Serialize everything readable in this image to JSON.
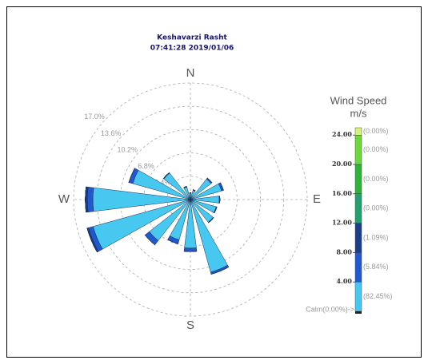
{
  "chart_data": {
    "type": "windrose",
    "title": "Keshavarzi Rasht",
    "subtitle": "07:41:28 2019/01/06",
    "categories": [
      "N",
      null,
      null,
      null,
      "E",
      null,
      null,
      null,
      "S",
      null,
      null,
      null,
      "W",
      null,
      null,
      null
    ],
    "rlim": [
      0,
      17
    ],
    "rticks": [
      {
        "value": 3.4,
        "label": "3.4%"
      },
      {
        "value": 6.8,
        "label": "6.8%"
      },
      {
        "value": 10.2,
        "label": "10.2%"
      },
      {
        "value": 13.6,
        "label": "13.6%"
      },
      {
        "value": 17.0,
        "label": "17.0%"
      }
    ],
    "grid": true,
    "legend_title": "Wind Speed",
    "legend_unit": "m/s",
    "calm_label": "Calm(0.00%)->",
    "speed_lim": [
      0,
      25
    ],
    "speed_bins": [
      0,
      4,
      8,
      12,
      16,
      20,
      24
    ],
    "speed_ticks": [
      {
        "value": 4,
        "label": "4.00"
      },
      {
        "value": 8,
        "label": "8.00"
      },
      {
        "value": 12,
        "label": "12.00"
      },
      {
        "value": 16,
        "label": "16.00"
      },
      {
        "value": 20,
        "label": "20.00"
      },
      {
        "value": 24,
        "label": "24.00"
      }
    ],
    "series": [
      {
        "color": "#46c8f0",
        "share_label": "(82.45%)",
        "values": [
          0.9,
          1.4,
          3.8,
          4.7,
          4.2,
          3.9,
          4.2,
          11.0,
          7.1,
          6.1,
          7.6,
          14.7,
          14.2,
          8.7,
          4.9,
          1.9
        ]
      },
      {
        "color": "#2058d0",
        "share_label": "(5.84%)",
        "values": [
          0.1,
          0.1,
          0.2,
          0.3,
          0.1,
          0.1,
          0.1,
          0.3,
          0.5,
          0.6,
          0.8,
          0.7,
          0.8,
          0.6,
          0.1,
          0.1
        ]
      },
      {
        "color": "#1a3f86",
        "share_label": "(1.09%)",
        "values": [
          0,
          0,
          0,
          0,
          0,
          0,
          0,
          0,
          0,
          0,
          0,
          0.2,
          0.3,
          0,
          0,
          0
        ]
      },
      {
        "color": "#23a070",
        "share_label": "(0.00%)",
        "values": [
          0,
          0,
          0,
          0,
          0,
          0,
          0,
          0,
          0,
          0,
          0,
          0,
          0,
          0,
          0,
          0
        ]
      },
      {
        "color": "#2fb43a",
        "share_label": "(0.00%)",
        "values": [
          0,
          0,
          0,
          0,
          0,
          0,
          0,
          0,
          0,
          0,
          0,
          0,
          0,
          0,
          0,
          0
        ]
      },
      {
        "color": "#6cd83a",
        "share_label": "(0.00%)",
        "values": [
          0,
          0,
          0,
          0,
          0,
          0,
          0,
          0,
          0,
          0,
          0,
          0,
          0,
          0,
          0,
          0
        ]
      },
      {
        "color": "#d6f27a",
        "share_label": "(0.00%)",
        "values": [
          0,
          0,
          0,
          0,
          0,
          0,
          0,
          0,
          0,
          0,
          0,
          0,
          0,
          0,
          0,
          0
        ]
      }
    ]
  }
}
